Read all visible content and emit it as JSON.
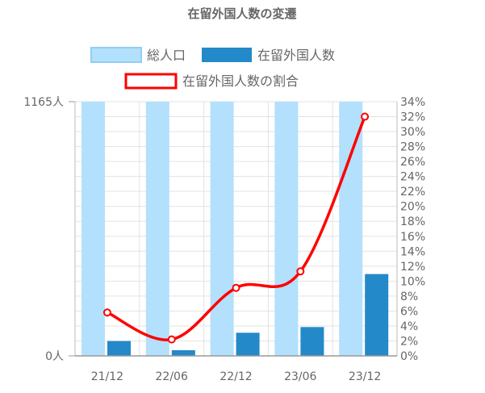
{
  "chart_data": {
    "type": "bar+line",
    "title": "在留外国人数の変遷",
    "categories": [
      "21/12",
      "22/06",
      "22/12",
      "23/06",
      "23/12"
    ],
    "series": [
      {
        "name": "総人口",
        "type": "bar",
        "values": [
          1165,
          1165,
          1165,
          1165,
          1165
        ],
        "color": "#b3e0fc"
      },
      {
        "name": "在留外国人数",
        "type": "bar",
        "values": [
          68,
          26,
          106,
          132,
          375
        ],
        "color": "#2489c9"
      },
      {
        "name": "在留外国人数の割合",
        "type": "line",
        "axis": "right",
        "values": [
          5.8,
          2.2,
          9.1,
          11.3,
          32.0
        ],
        "color": "#ff0000"
      }
    ],
    "left_axis": {
      "labels": [
        "1165人",
        "0人"
      ],
      "ylim": [
        0,
        1165
      ]
    },
    "right_axis": {
      "ylim": [
        0,
        34
      ],
      "labels": [
        "34%",
        "32%",
        "30%",
        "28%",
        "26%",
        "24%",
        "22%",
        "20%",
        "18%",
        "16%",
        "14%",
        "12%",
        "10%",
        "8%",
        "6%",
        "4%",
        "2%",
        "0%"
      ]
    },
    "grid": true,
    "legend_position": "top"
  }
}
